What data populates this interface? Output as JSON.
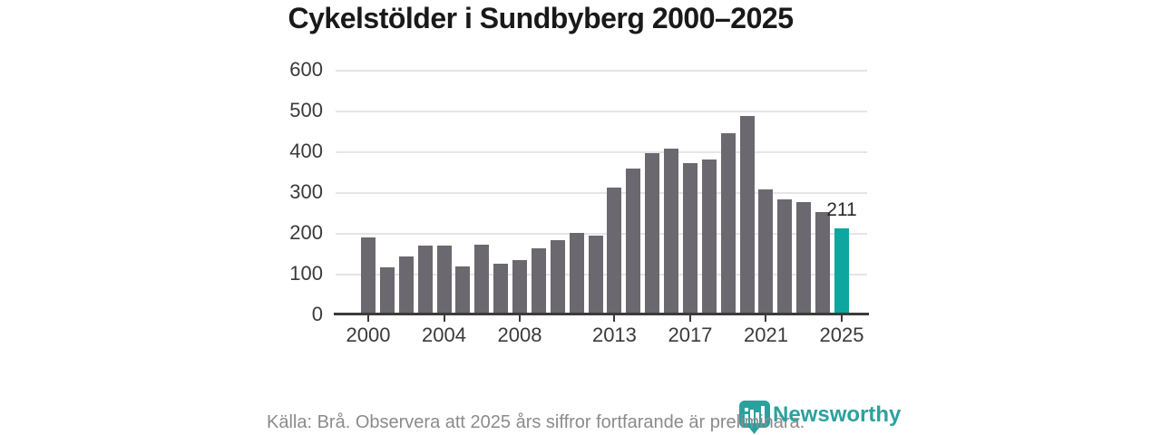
{
  "title": "Cykelstölder i Sundbyberg 2000–2025",
  "chart_data": {
    "type": "bar",
    "title": "Cykelstölder i Sundbyberg 2000–2025",
    "categories": [
      2000,
      2001,
      2002,
      2003,
      2004,
      2005,
      2006,
      2007,
      2008,
      2009,
      2010,
      2011,
      2012,
      2013,
      2014,
      2015,
      2016,
      2017,
      2018,
      2019,
      2020,
      2021,
      2022,
      2023,
      2024,
      2025
    ],
    "values": [
      188,
      116,
      142,
      169,
      168,
      117,
      172,
      124,
      133,
      163,
      182,
      201,
      193,
      312,
      357,
      395,
      406,
      370,
      379,
      444,
      486,
      306,
      283,
      276,
      251,
      211
    ],
    "highlight_year": 2025,
    "highlight_value_label": "211",
    "bar_color": "#6c6870",
    "highlight_color": "#0ea69f",
    "ylim": [
      0,
      600
    ],
    "yticks": [
      0,
      100,
      200,
      300,
      400,
      500,
      600
    ],
    "xticks": [
      2000,
      2004,
      2008,
      2013,
      2017,
      2021,
      2025
    ],
    "xlabel": "",
    "ylabel": "",
    "grid": "horizontal",
    "legend": "none"
  },
  "footer": {
    "source_note": "Källa: Brå. Observera att 2025 års siffror fortfarande är preliminära."
  },
  "branding": {
    "logo_text": "Newsworthy",
    "logo_icon": "newsworthy-badge-barchart-icon",
    "logo_color": "#2ba19f"
  },
  "colors": {
    "bar": "#6c6870",
    "highlight": "#0ea69f",
    "gridline": "#e5e5e5",
    "axis": "#3b3b3b",
    "tick_label": "#3a3a3a",
    "title": "#191919",
    "source_text": "#8b8b8b"
  }
}
